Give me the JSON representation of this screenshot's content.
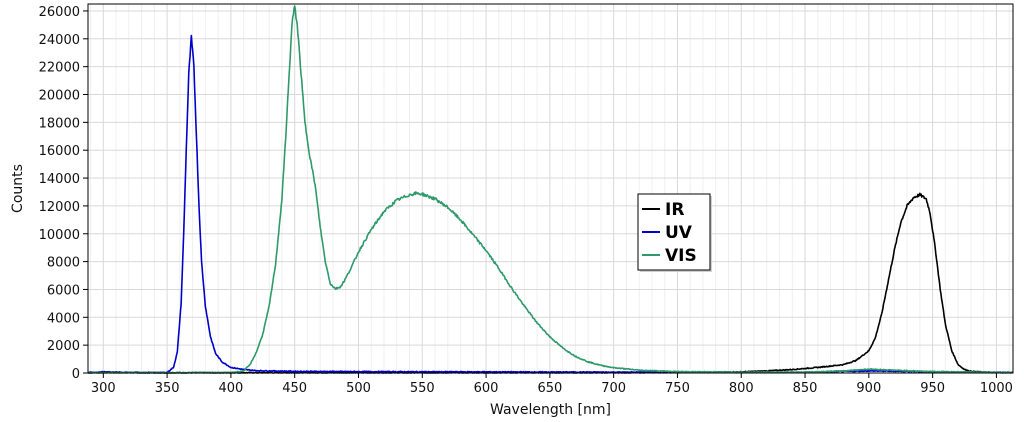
{
  "chart_data": {
    "type": "line",
    "title": "",
    "xlabel": "Wavelength [nm]",
    "ylabel": "Counts",
    "xlim": [
      288,
      1013
    ],
    "ylim": [
      0,
      26500
    ],
    "grid": true,
    "legend_position": "center-right",
    "x_ticks": [
      300,
      350,
      400,
      450,
      500,
      550,
      600,
      650,
      700,
      750,
      800,
      850,
      900,
      950,
      1000
    ],
    "y_ticks": [
      0,
      2000,
      4000,
      6000,
      8000,
      10000,
      12000,
      14000,
      16000,
      18000,
      20000,
      22000,
      24000,
      26000
    ],
    "series": [
      {
        "name": "IR",
        "color": "#000000",
        "points": [
          [
            288,
            0
          ],
          [
            300,
            80
          ],
          [
            320,
            40
          ],
          [
            350,
            20
          ],
          [
            400,
            20
          ],
          [
            500,
            15
          ],
          [
            600,
            15
          ],
          [
            700,
            20
          ],
          [
            750,
            40
          ],
          [
            800,
            80
          ],
          [
            820,
            150
          ],
          [
            840,
            250
          ],
          [
            860,
            400
          ],
          [
            880,
            600
          ],
          [
            890,
            900
          ],
          [
            900,
            1600
          ],
          [
            905,
            2500
          ],
          [
            910,
            4200
          ],
          [
            915,
            6500
          ],
          [
            920,
            8800
          ],
          [
            925,
            10800
          ],
          [
            930,
            12000
          ],
          [
            935,
            12600
          ],
          [
            940,
            12800
          ],
          [
            945,
            12500
          ],
          [
            948,
            11500
          ],
          [
            952,
            9000
          ],
          [
            956,
            6000
          ],
          [
            960,
            3500
          ],
          [
            965,
            1600
          ],
          [
            970,
            600
          ],
          [
            975,
            250
          ],
          [
            980,
            120
          ],
          [
            990,
            60
          ],
          [
            1000,
            40
          ],
          [
            1013,
            30
          ]
        ]
      },
      {
        "name": "UV",
        "color": "#0000cc",
        "points": [
          [
            288,
            40
          ],
          [
            300,
            60
          ],
          [
            320,
            30
          ],
          [
            340,
            20
          ],
          [
            350,
            40
          ],
          [
            355,
            400
          ],
          [
            358,
            1500
          ],
          [
            361,
            5000
          ],
          [
            363,
            10000
          ],
          [
            365,
            16000
          ],
          [
            367,
            21500
          ],
          [
            369,
            24100
          ],
          [
            371,
            22000
          ],
          [
            373,
            17000
          ],
          [
            375,
            12000
          ],
          [
            377,
            8000
          ],
          [
            380,
            4800
          ],
          [
            384,
            2600
          ],
          [
            388,
            1400
          ],
          [
            393,
            800
          ],
          [
            400,
            400
          ],
          [
            410,
            250
          ],
          [
            420,
            170
          ],
          [
            450,
            120
          ],
          [
            500,
            100
          ],
          [
            600,
            80
          ],
          [
            700,
            60
          ],
          [
            800,
            40
          ],
          [
            850,
            50
          ],
          [
            900,
            150
          ],
          [
            930,
            120
          ],
          [
            960,
            80
          ],
          [
            1000,
            40
          ],
          [
            1013,
            30
          ]
        ]
      },
      {
        "name": "VIS",
        "color": "#2e9a6a",
        "points": [
          [
            288,
            20
          ],
          [
            350,
            20
          ],
          [
            400,
            30
          ],
          [
            410,
            150
          ],
          [
            415,
            600
          ],
          [
            420,
            1500
          ],
          [
            425,
            2800
          ],
          [
            430,
            4800
          ],
          [
            435,
            7800
          ],
          [
            440,
            12500
          ],
          [
            443,
            17000
          ],
          [
            446,
            22000
          ],
          [
            448,
            25200
          ],
          [
            450,
            26300
          ],
          [
            452,
            25000
          ],
          [
            455,
            21500
          ],
          [
            458,
            18000
          ],
          [
            462,
            15500
          ],
          [
            466,
            13500
          ],
          [
            470,
            10500
          ],
          [
            474,
            8000
          ],
          [
            478,
            6400
          ],
          [
            482,
            6050
          ],
          [
            486,
            6200
          ],
          [
            490,
            6800
          ],
          [
            495,
            7700
          ],
          [
            500,
            8700
          ],
          [
            510,
            10300
          ],
          [
            520,
            11600
          ],
          [
            530,
            12400
          ],
          [
            540,
            12800
          ],
          [
            545,
            12900
          ],
          [
            550,
            12850
          ],
          [
            560,
            12500
          ],
          [
            570,
            11900
          ],
          [
            580,
            11000
          ],
          [
            590,
            9900
          ],
          [
            600,
            8800
          ],
          [
            610,
            7500
          ],
          [
            620,
            6100
          ],
          [
            630,
            4800
          ],
          [
            640,
            3600
          ],
          [
            650,
            2600
          ],
          [
            660,
            1800
          ],
          [
            670,
            1200
          ],
          [
            680,
            800
          ],
          [
            690,
            550
          ],
          [
            700,
            380
          ],
          [
            720,
            200
          ],
          [
            750,
            100
          ],
          [
            800,
            60
          ],
          [
            850,
            60
          ],
          [
            880,
            150
          ],
          [
            900,
            280
          ],
          [
            920,
            200
          ],
          [
            950,
            100
          ],
          [
            1000,
            40
          ],
          [
            1013,
            30
          ]
        ]
      }
    ]
  },
  "colors": {
    "grid": "#d9d9d9",
    "axis": "#000000",
    "background": "#ffffff"
  }
}
